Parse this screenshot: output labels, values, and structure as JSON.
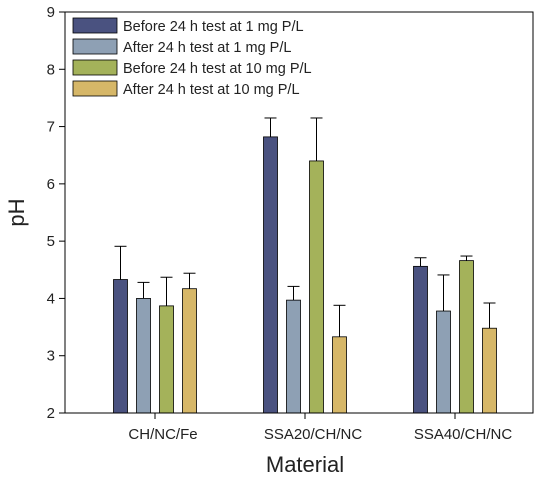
{
  "chart_data": {
    "type": "bar",
    "xlabel": "Material",
    "ylabel": "pH",
    "ylim": [
      2,
      9
    ],
    "yticks": [
      2,
      3,
      4,
      5,
      6,
      7,
      8,
      9
    ],
    "categories": [
      "CH/NC/Fe",
      "SSA20/CH/NC",
      "SSA40/CH/NC"
    ],
    "error_bars": "upper",
    "grid": false,
    "legend_position": "top-left",
    "series": [
      {
        "name": "Before 24 h test at 1 mg P/L",
        "color": "#4a5280",
        "values": [
          4.33,
          6.82,
          4.56
        ],
        "errors": [
          0.58,
          0.33,
          0.15
        ]
      },
      {
        "name": "After 24 h test at 1 mg P/L",
        "color": "#8ea0b4",
        "values": [
          4.0,
          3.97,
          3.78
        ],
        "errors": [
          0.28,
          0.24,
          0.63
        ]
      },
      {
        "name": "Before 24 h test at 10 mg P/L",
        "color": "#a4b25a",
        "values": [
          3.87,
          6.4,
          4.66
        ],
        "errors": [
          0.5,
          0.75,
          0.08
        ]
      },
      {
        "name": "After 24 h test at 10 mg P/L",
        "color": "#d6b768",
        "values": [
          4.17,
          3.33,
          3.48
        ],
        "errors": [
          0.27,
          0.55,
          0.44
        ]
      }
    ]
  }
}
